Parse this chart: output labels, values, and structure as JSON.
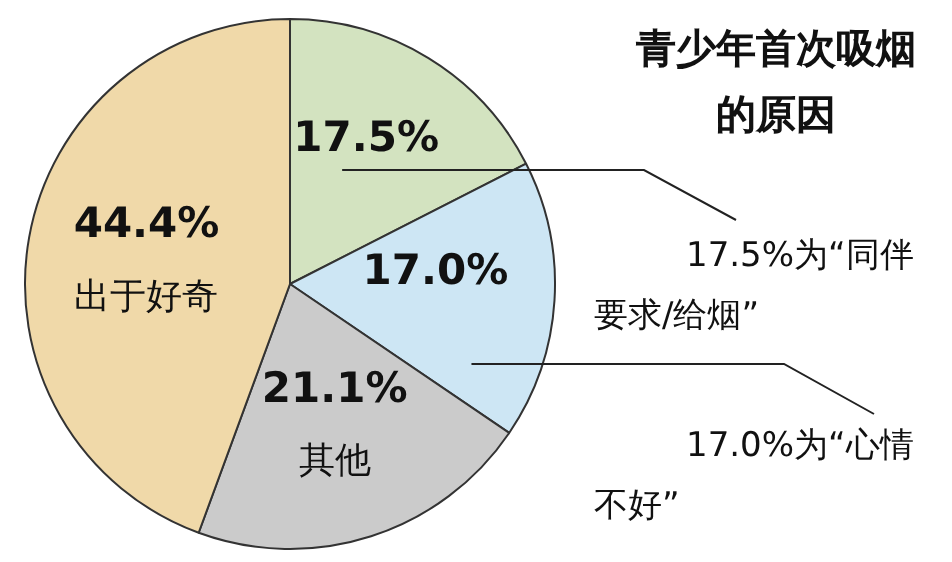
{
  "chart_data": {
    "type": "pie",
    "title": "青少年首次吸烟的原因",
    "categories": [
      null,
      null,
      "其他",
      "出于好奇"
    ],
    "values": [
      17.5,
      17.0,
      21.1,
      44.4
    ],
    "value_labels": [
      "17.5%",
      "17.0%",
      "21.1%",
      "44.4%"
    ],
    "colors": [
      "#d3e3c0",
      "#cde6f4",
      "#cbcbcb",
      "#f0d9a9"
    ],
    "annotations": [
      "17.5%为“同伴要求/给烟”",
      "17.0%为“心情不好”"
    ],
    "legend": false
  }
}
